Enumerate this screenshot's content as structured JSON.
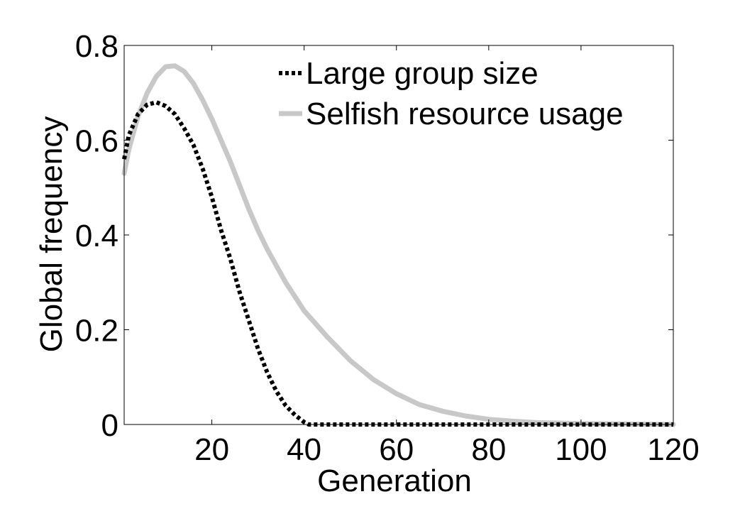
{
  "chart_data": {
    "type": "line",
    "xlabel": "Generation",
    "ylabel": "Global frequency",
    "xlim": [
      1,
      120
    ],
    "ylim": [
      0,
      0.8
    ],
    "xticks": [
      20,
      40,
      60,
      80,
      100,
      120
    ],
    "yticks": [
      0,
      0.2,
      0.4,
      0.6,
      0.8
    ],
    "xtick_labels": [
      "20",
      "40",
      "60",
      "80",
      "100",
      "120"
    ],
    "ytick_labels": [
      "0",
      "0.2",
      "0.4",
      "0.6",
      "0.8"
    ],
    "grid": false,
    "legend_position": "top-right",
    "series": [
      {
        "name": "Large group size",
        "style": "dotted",
        "color": "#000000",
        "x": [
          1,
          2,
          4,
          6,
          8,
          10,
          12,
          14,
          16,
          18,
          20,
          22,
          24,
          26,
          28,
          30,
          32,
          34,
          36,
          38,
          40,
          41,
          42,
          45,
          50,
          60,
          80,
          100,
          120
        ],
        "y": [
          0.56,
          0.61,
          0.655,
          0.675,
          0.68,
          0.672,
          0.655,
          0.625,
          0.59,
          0.54,
          0.48,
          0.41,
          0.35,
          0.28,
          0.22,
          0.16,
          0.11,
          0.07,
          0.04,
          0.02,
          0.005,
          0.0,
          0.0,
          0.0,
          0.0,
          0.0,
          0.0,
          0.0,
          0.0
        ]
      },
      {
        "name": "Selfish resource usage",
        "style": "solid",
        "color": "#c8c8c8",
        "x": [
          1,
          2,
          4,
          6,
          8,
          10,
          12,
          14,
          16,
          18,
          20,
          22,
          24,
          26,
          28,
          30,
          32,
          34,
          36,
          38,
          40,
          45,
          50,
          55,
          60,
          65,
          70,
          75,
          80,
          85,
          90,
          95,
          100,
          110,
          120
        ],
        "y": [
          0.53,
          0.58,
          0.65,
          0.7,
          0.735,
          0.755,
          0.757,
          0.745,
          0.72,
          0.685,
          0.645,
          0.6,
          0.555,
          0.505,
          0.455,
          0.41,
          0.37,
          0.335,
          0.3,
          0.27,
          0.24,
          0.185,
          0.135,
          0.095,
          0.065,
          0.042,
          0.028,
          0.018,
          0.011,
          0.007,
          0.004,
          0.003,
          0.002,
          0.001,
          0.0
        ]
      }
    ]
  }
}
